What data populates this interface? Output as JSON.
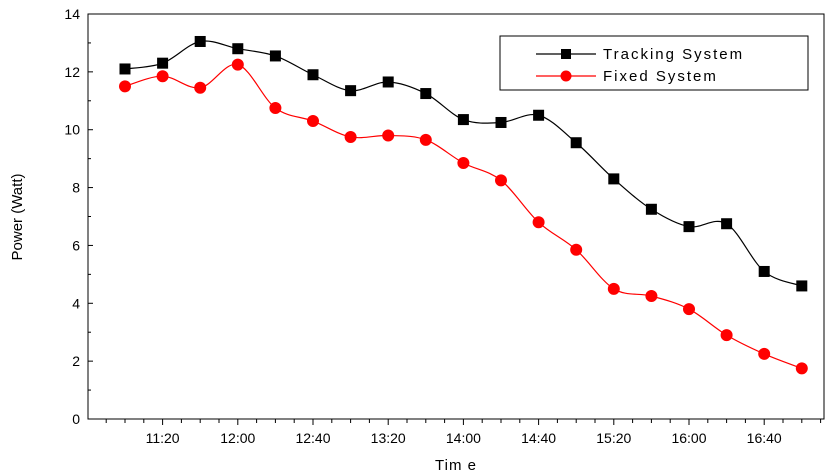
{
  "chart_data": {
    "type": "line",
    "title": "",
    "xlabel": "Tim e",
    "ylabel": "Power (Watt)",
    "x_ticks": [
      "11:20",
      "12:00",
      "12:40",
      "13:20",
      "14:00",
      "14:40",
      "15:20",
      "16:00",
      "16:40"
    ],
    "x": [
      "11:00",
      "11:20",
      "11:40",
      "12:00",
      "12:20",
      "12:40",
      "13:00",
      "13:20",
      "13:40",
      "14:00",
      "14:20",
      "14:40",
      "15:00",
      "15:20",
      "15:40",
      "16:00",
      "16:20",
      "16:40",
      "17:00"
    ],
    "ylim": [
      0,
      14
    ],
    "y_ticks": [
      "0",
      "2",
      "4",
      "6",
      "8",
      "10",
      "12",
      "14"
    ],
    "grid": false,
    "legend_position": "top-right",
    "series": [
      {
        "name": "Tracking System",
        "color": "#000000",
        "marker": "square",
        "values": [
          12.1,
          12.3,
          13.05,
          12.8,
          12.55,
          11.9,
          11.35,
          11.65,
          11.25,
          10.35,
          10.25,
          10.5,
          9.55,
          8.3,
          7.25,
          6.65,
          6.75,
          5.1,
          4.6
        ]
      },
      {
        "name": "Fixed System",
        "color": "#ff0000",
        "marker": "circle",
        "values": [
          11.5,
          11.85,
          11.45,
          12.25,
          10.75,
          10.3,
          9.75,
          9.8,
          9.65,
          8.85,
          8.25,
          6.8,
          5.85,
          4.5,
          4.25,
          3.8,
          2.9,
          2.25,
          1.75
        ]
      }
    ]
  }
}
